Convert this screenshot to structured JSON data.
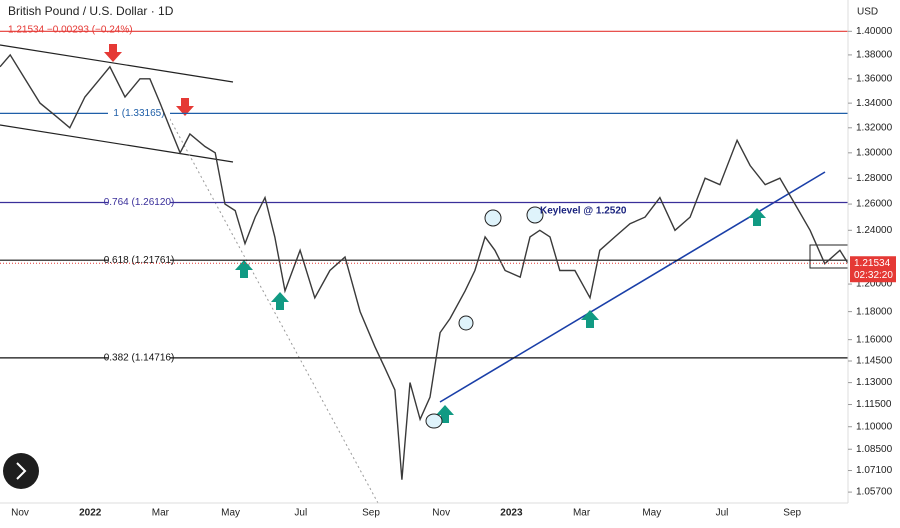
{
  "chart_data": {
    "type": "line",
    "title": "British Pound / U.S. Dollar · 1D",
    "quote": "1.21534 −0.00293 (−0.24%)",
    "currency": "USD",
    "annotation": "Keylevel @ 1.2520",
    "last_price": 1.21534,
    "countdown": "02:32:20",
    "log_scale": true,
    "color": "#3a3a3a",
    "x": [
      -0.57,
      -0.28,
      0.14,
      0.57,
      1.0,
      1.42,
      1.85,
      2.28,
      2.56,
      2.99,
      3.42,
      3.7,
      3.99,
      4.27,
      4.56,
      4.84,
      5.27,
      5.56,
      5.84,
      6.13,
      6.41,
      6.7,
      6.98,
      7.26,
      7.55,
      7.98,
      8.4,
      8.83,
      9.26,
      9.69,
      10.11,
      10.4,
      10.68,
      10.88,
      11.11,
      11.4,
      11.68,
      11.97,
      12.25,
      12.68,
      12.96,
      13.25,
      13.53,
      13.82,
      14.25,
      14.53,
      14.81,
      15.1,
      15.38,
      15.81,
      16.24,
      16.52,
      16.95,
      17.38,
      17.81,
      18.23,
      18.66,
      19.09,
      19.52,
      19.94,
      20.43,
      20.8,
      21.23,
      21.65,
      22.08,
      22.51,
      22.93,
      23.36,
      23.59
    ],
    "values": [
      1.37,
      1.38,
      1.36,
      1.34,
      1.33,
      1.32,
      1.345,
      1.36,
      1.37,
      1.345,
      1.36,
      1.36,
      1.34,
      1.32,
      1.3,
      1.315,
      1.305,
      1.3,
      1.26,
      1.255,
      1.23,
      1.25,
      1.265,
      1.235,
      1.195,
      1.225,
      1.19,
      1.21,
      1.22,
      1.18,
      1.155,
      1.14,
      1.125,
      1.065,
      1.13,
      1.105,
      1.12,
      1.165,
      1.175,
      1.195,
      1.21,
      1.235,
      1.225,
      1.21,
      1.205,
      1.235,
      1.24,
      1.235,
      1.21,
      1.21,
      1.19,
      1.225,
      1.235,
      1.245,
      1.25,
      1.265,
      1.24,
      1.25,
      1.28,
      1.275,
      1.31,
      1.29,
      1.275,
      1.28,
      1.26,
      1.24,
      1.215,
      1.225,
      1.2153
    ],
    "xlim": [
      -0.57,
      23.59
    ],
    "xticks": [
      {
        "value": 0,
        "label": "Nov"
      },
      {
        "value": 2,
        "label": "2022"
      },
      {
        "value": 4,
        "label": "Mar"
      },
      {
        "value": 6,
        "label": "May"
      },
      {
        "value": 8,
        "label": "Jul"
      },
      {
        "value": 10,
        "label": "Sep"
      },
      {
        "value": 12,
        "label": "Nov"
      },
      {
        "value": 14,
        "label": "2023"
      },
      {
        "value": 16,
        "label": "Mar"
      },
      {
        "value": 18,
        "label": "May"
      },
      {
        "value": 20,
        "label": "Jul"
      },
      {
        "value": 22,
        "label": "Sep"
      }
    ],
    "ylim": [
      1.05,
      1.427
    ],
    "yticks": [
      {
        "value": 1.4,
        "label": "1.40000"
      },
      {
        "value": 1.38,
        "label": "1.38000"
      },
      {
        "value": 1.36,
        "label": "1.36000"
      },
      {
        "value": 1.34,
        "label": "1.34000"
      },
      {
        "value": 1.32,
        "label": "1.32000"
      },
      {
        "value": 1.3,
        "label": "1.30000"
      },
      {
        "value": 1.28,
        "label": "1.28000"
      },
      {
        "value": 1.26,
        "label": "1.26000"
      },
      {
        "value": 1.24,
        "label": "1.24000"
      },
      {
        "value": 1.2,
        "label": "1.20000"
      },
      {
        "value": 1.18,
        "label": "1.18000"
      },
      {
        "value": 1.16,
        "label": "1.16000"
      },
      {
        "value": 1.145,
        "label": "1.14500"
      },
      {
        "value": 1.13,
        "label": "1.13000"
      },
      {
        "value": 1.115,
        "label": "1.11500"
      },
      {
        "value": 1.1,
        "label": "1.10000"
      },
      {
        "value": 1.085,
        "label": "1.08500"
      },
      {
        "value": 1.071,
        "label": "1.07100"
      },
      {
        "value": 1.057,
        "label": "1.05700"
      }
    ],
    "levels": [
      {
        "value": 1.4,
        "color": "#e53935"
      },
      {
        "value": 1.33165,
        "label": "1 (1.33165)",
        "color": "#1f5fa8"
      },
      {
        "value": 1.2612,
        "label": "0.764 (1.26120)",
        "color": "#3a2f9a"
      },
      {
        "value": 1.21761,
        "label": "0.618 (1.21761)",
        "color": "#111111"
      },
      {
        "value": 1.14716,
        "label": "0.382 (1.14716)",
        "color": "#111111"
      }
    ]
  }
}
